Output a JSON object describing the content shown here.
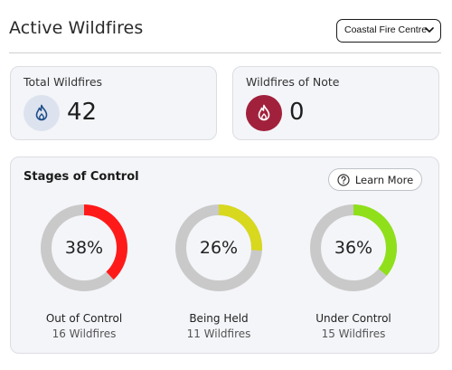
{
  "header": {
    "title": "Active Wildfires",
    "dropdown": {
      "selected": "Coastal Fire Centre",
      "icon": "chevron-down-icon"
    }
  },
  "summary": {
    "total": {
      "label": "Total Wildfires",
      "value": "42",
      "icon": "flame-icon",
      "badge_color": "#dde3ee",
      "icon_color": "#1f4f8a"
    },
    "note": {
      "label": "Wildfires of Note",
      "value": "0",
      "icon": "flame-icon",
      "badge_color": "#a1213c",
      "icon_color": "#ffffff"
    }
  },
  "stages": {
    "title": "Stages of Control",
    "learn_more": {
      "label": "Learn More",
      "icon": "help-circle-icon"
    },
    "items": [
      {
        "percent": 38,
        "percent_label": "38%",
        "label": "Out of Control",
        "count": "16 Wildfires",
        "color": "#ff1a1a"
      },
      {
        "percent": 26,
        "percent_label": "26%",
        "label": "Being Held",
        "count": "11 Wildfires",
        "color": "#d8d81e"
      },
      {
        "percent": 36,
        "percent_label": "36%",
        "label": "Under Control",
        "count": "15 Wildfires",
        "color": "#8fe01a"
      }
    ],
    "track_color": "#c9c9c9"
  }
}
